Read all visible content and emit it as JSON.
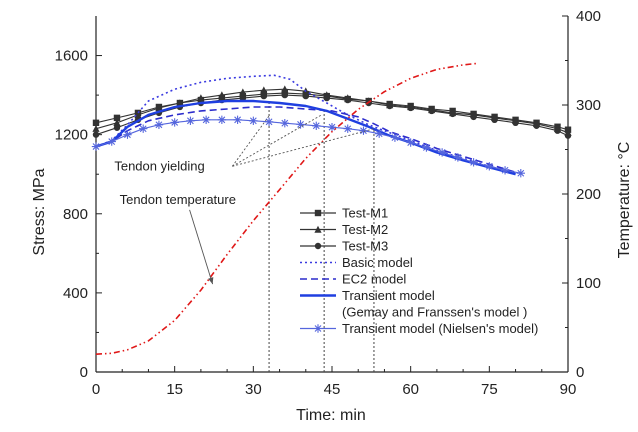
{
  "chart_data": {
    "type": "line",
    "xlabel": "Time: min",
    "ylabel_left": "Stress: MPa",
    "ylabel_right": "Temperature: °C",
    "xlim": [
      0,
      90
    ],
    "ylim_left": [
      0,
      1800
    ],
    "ylim_right": [
      0,
      400
    ],
    "x_ticks": [
      0,
      15,
      30,
      45,
      60,
      75,
      90
    ],
    "y_ticks_left": [
      0,
      400,
      800,
      1200,
      1600
    ],
    "y_ticks_right": [
      0,
      100,
      200,
      300,
      400
    ],
    "legend_position": "bottom-right",
    "annotations": [
      {
        "text": "Tendon yielding",
        "anchor": [
          3.5,
          1020
        ],
        "targets": [
          [
            33,
            1295
          ],
          [
            43,
            1300
          ],
          [
            53,
            1230
          ]
        ]
      },
      {
        "text": "Tendon temperature",
        "anchor": [
          4.5,
          850
        ],
        "targets": [
          [
            23,
            555
          ]
        ]
      }
    ],
    "yield_times": [
      33,
      43.5,
      53
    ],
    "series": [
      {
        "name": "Test-M1",
        "axis": "left",
        "color": "#333333",
        "style": "solid",
        "marker": "square",
        "x": [
          0,
          4,
          8,
          12,
          16,
          20,
          24,
          28,
          32,
          36,
          40,
          44,
          48,
          52,
          56,
          60,
          64,
          68,
          72,
          76,
          80,
          84,
          88,
          90
        ],
        "y": [
          1260,
          1285,
          1310,
          1340,
          1360,
          1375,
          1385,
          1395,
          1405,
          1410,
          1405,
          1395,
          1380,
          1370,
          1355,
          1345,
          1330,
          1320,
          1305,
          1290,
          1275,
          1260,
          1240,
          1225
        ]
      },
      {
        "name": "Test-M2",
        "axis": "left",
        "color": "#333333",
        "style": "solid",
        "marker": "triangle",
        "x": [
          0,
          4,
          8,
          12,
          16,
          20,
          24,
          28,
          32,
          36,
          40,
          44,
          48,
          52,
          56,
          60,
          64,
          68,
          72,
          76,
          80,
          84,
          88,
          90
        ],
        "y": [
          1230,
          1260,
          1300,
          1335,
          1360,
          1385,
          1400,
          1415,
          1425,
          1430,
          1420,
          1400,
          1385,
          1370,
          1350,
          1340,
          1325,
          1310,
          1300,
          1285,
          1270,
          1255,
          1230,
          1210
        ]
      },
      {
        "name": "Test-M3",
        "axis": "left",
        "color": "#333333",
        "style": "solid",
        "marker": "circle",
        "x": [
          0,
          4,
          8,
          12,
          16,
          20,
          24,
          28,
          32,
          36,
          40,
          44,
          48,
          52,
          56,
          60,
          64,
          68,
          72,
          76,
          80,
          84,
          88,
          90
        ],
        "y": [
          1200,
          1235,
          1275,
          1310,
          1340,
          1360,
          1375,
          1385,
          1395,
          1400,
          1395,
          1385,
          1375,
          1360,
          1345,
          1335,
          1320,
          1305,
          1290,
          1275,
          1260,
          1245,
          1220,
          1195
        ]
      },
      {
        "name": "Basic model",
        "axis": "left",
        "color": "#3a3ae0",
        "style": "dotted",
        "marker": "none",
        "x": [
          0,
          3,
          6,
          10,
          15,
          20,
          25,
          30,
          34,
          37,
          40,
          44,
          48,
          52,
          56,
          60,
          65,
          70,
          75,
          80
        ],
        "y": [
          1140,
          1170,
          1250,
          1370,
          1430,
          1465,
          1485,
          1495,
          1500,
          1480,
          1420,
          1360,
          1300,
          1250,
          1210,
          1170,
          1120,
          1080,
          1040,
          1005
        ]
      },
      {
        "name": "EC2 model",
        "axis": "left",
        "color": "#2c2ccc",
        "style": "dashed",
        "marker": "none",
        "x": [
          0,
          3,
          6,
          10,
          15,
          20,
          25,
          30,
          35,
          40,
          45,
          50,
          53,
          56,
          60,
          65,
          70,
          75,
          80
        ],
        "y": [
          1140,
          1165,
          1220,
          1270,
          1300,
          1320,
          1330,
          1340,
          1340,
          1330,
          1320,
          1290,
          1255,
          1215,
          1180,
          1130,
          1090,
          1050,
          1010
        ]
      },
      {
        "name": "Transient model",
        "axis": "left",
        "color": "#1f3fe0",
        "style": "solid-thick",
        "marker": "none",
        "x": [
          0,
          3,
          6,
          10,
          15,
          20,
          25,
          30,
          35,
          40,
          44,
          48,
          52,
          56,
          60,
          65,
          70,
          75,
          80
        ],
        "y": [
          1140,
          1165,
          1240,
          1300,
          1340,
          1360,
          1370,
          1370,
          1360,
          1345,
          1320,
          1280,
          1240,
          1195,
          1160,
          1110,
          1070,
          1035,
          1000
        ]
      },
      {
        "name": "Transient model (Nielsen's model)",
        "axis": "left",
        "color": "#5566dd",
        "style": "solid",
        "marker": "asterisk",
        "x": [
          0,
          3,
          6,
          9,
          12,
          15,
          18,
          21,
          24,
          27,
          30,
          33,
          36,
          39,
          42,
          45,
          48,
          51,
          54,
          57,
          60,
          63,
          66,
          69,
          72,
          75,
          78,
          81
        ],
        "y": [
          1140,
          1165,
          1200,
          1230,
          1250,
          1262,
          1270,
          1275,
          1275,
          1275,
          1270,
          1265,
          1258,
          1252,
          1245,
          1238,
          1230,
          1220,
          1205,
          1185,
          1160,
          1135,
          1110,
          1085,
          1060,
          1040,
          1020,
          1005
        ]
      },
      {
        "name": "Tendon temperature",
        "axis": "right",
        "color": "#e01818",
        "style": "dashdotdot",
        "marker": "none",
        "x": [
          0,
          3,
          6,
          10,
          15,
          20,
          25,
          30,
          35,
          40,
          45,
          50,
          55,
          60,
          65,
          70,
          73
        ],
        "y": [
          20,
          21,
          25,
          35,
          58,
          92,
          132,
          170,
          205,
          240,
          270,
          295,
          315,
          330,
          340,
          345,
          347
        ]
      }
    ]
  },
  "text": {
    "ylabel_left": "Stress: MPa",
    "ylabel_right": "Temperature: °C",
    "xlabel": "Time: min",
    "annot_yield": "Tendon yielding",
    "annot_temp": "Tendon temperature",
    "legend_l1": "Test-M1",
    "legend_l2": "Test-M2",
    "legend_l3": "Test-M3",
    "legend_l4": "Basic model",
    "legend_l5": "EC2 model",
    "legend_l6a": "Transient model",
    "legend_l6b": "(Gemay and Franssen's model )",
    "legend_l7": "Transient model (Nielsen's model)"
  }
}
